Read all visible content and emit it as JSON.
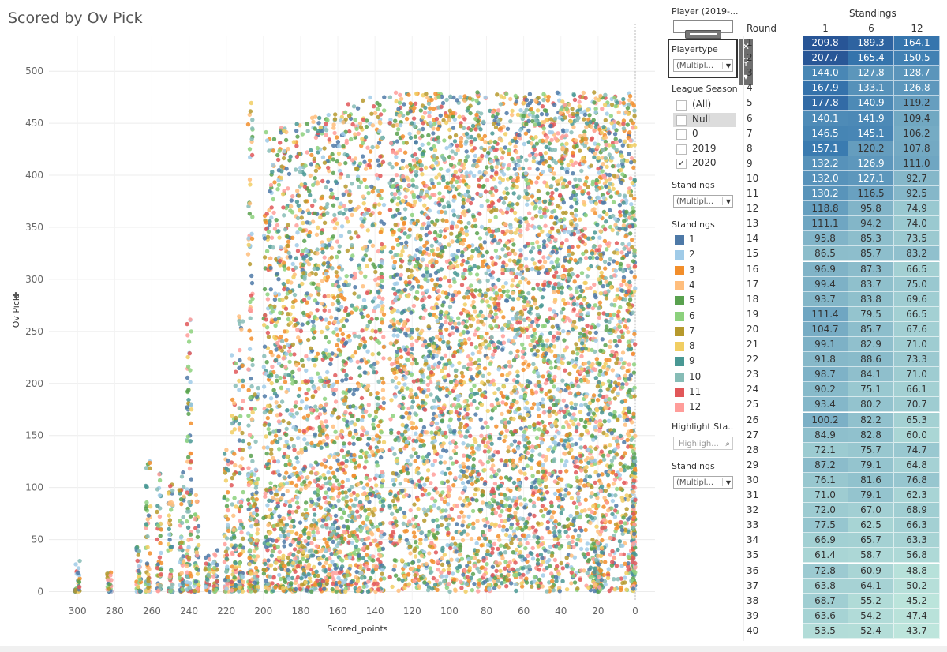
{
  "title": "Scored by Ov Pick",
  "chart_data": {
    "type": "scatter",
    "title": "Scored by Ov Pick",
    "xlabel": "Scored_points",
    "ylabel": "Ov Pick",
    "x_reversed": true,
    "xlim": [
      320,
      0
    ],
    "ylim": [
      -10,
      530
    ],
    "x_ticks": [
      300,
      280,
      260,
      240,
      220,
      200,
      180,
      160,
      140,
      120,
      100,
      80,
      60,
      40,
      20,
      0
    ],
    "y_ticks": [
      0,
      50,
      100,
      150,
      200,
      250,
      300,
      350,
      400,
      450,
      500
    ],
    "grid": true,
    "color_by": "Standings",
    "series_colors": [
      "#4e79a7",
      "#a0cbe8",
      "#f28e2b",
      "#ffbe7d",
      "#59a14f",
      "#8cd17d",
      "#b6992d",
      "#f1ce63",
      "#499894",
      "#86bcb6",
      "#e15759",
      "#ff9d9a"
    ],
    "approx_density": "very dense for Scored_points 0-135 and Ov Pick 0-480; vertical strips at discrete points values 300-140"
  },
  "filters": {
    "player_label": "Player (2019-...",
    "playertype_label": "Playertype",
    "playertype_value": "(Multipl...",
    "league_season_label": "League Season",
    "league_season_options": [
      {
        "label": "(All)",
        "checked": false
      },
      {
        "label": "Null",
        "checked": false
      },
      {
        "label": "0",
        "checked": false
      },
      {
        "label": "2019",
        "checked": false
      },
      {
        "label": "2020",
        "checked": true
      }
    ],
    "standings_label": "Standings",
    "standings_value": "(Multipl...",
    "standings_legend_label": "Standings",
    "legend": [
      {
        "label": "1",
        "color": "#4e79a7"
      },
      {
        "label": "2",
        "color": "#a0cbe8"
      },
      {
        "label": "3",
        "color": "#f28e2b"
      },
      {
        "label": "4",
        "color": "#ffbe7d"
      },
      {
        "label": "5",
        "color": "#59a14f"
      },
      {
        "label": "6",
        "color": "#8cd17d"
      },
      {
        "label": "7",
        "color": "#b6992d"
      },
      {
        "label": "8",
        "color": "#f1ce63"
      },
      {
        "label": "9",
        "color": "#499894"
      },
      {
        "label": "10",
        "color": "#86bcb6"
      },
      {
        "label": "11",
        "color": "#e15759"
      },
      {
        "label": "12",
        "color": "#ff9d9a"
      }
    ],
    "highlight_label": "Highlight Sta..",
    "highlight_placeholder": "Highligh...",
    "standings2_label": "Standings",
    "standings2_value": "(Multipl..."
  },
  "toolbar": {
    "close_glyph": "✕",
    "pin_glyph": "⚲",
    "menu_glyph": "▾"
  },
  "table": {
    "header": "Standings",
    "row_header": "Round",
    "columns": [
      "1",
      "6",
      "12"
    ],
    "rows": [
      {
        "round": "1",
        "values": [
          209.8,
          189.3,
          164.1
        ]
      },
      {
        "round": "2",
        "values": [
          207.7,
          165.4,
          150.5
        ]
      },
      {
        "round": "3",
        "values": [
          144.0,
          127.8,
          128.7
        ]
      },
      {
        "round": "4",
        "values": [
          167.9,
          133.1,
          126.8
        ]
      },
      {
        "round": "5",
        "values": [
          177.8,
          140.9,
          119.2
        ]
      },
      {
        "round": "6",
        "values": [
          140.1,
          141.9,
          109.4
        ]
      },
      {
        "round": "7",
        "values": [
          146.5,
          145.1,
          106.2
        ]
      },
      {
        "round": "8",
        "values": [
          157.1,
          120.2,
          107.8
        ]
      },
      {
        "round": "9",
        "values": [
          132.2,
          126.9,
          111.0
        ]
      },
      {
        "round": "10",
        "values": [
          132.0,
          127.1,
          92.7
        ]
      },
      {
        "round": "11",
        "values": [
          130.2,
          116.5,
          92.5
        ]
      },
      {
        "round": "12",
        "values": [
          118.8,
          95.8,
          74.9
        ]
      },
      {
        "round": "13",
        "values": [
          111.1,
          94.2,
          74.0
        ]
      },
      {
        "round": "14",
        "values": [
          95.8,
          85.3,
          73.5
        ]
      },
      {
        "round": "15",
        "values": [
          86.5,
          85.7,
          83.2
        ]
      },
      {
        "round": "16",
        "values": [
          96.9,
          87.3,
          66.5
        ]
      },
      {
        "round": "17",
        "values": [
          99.4,
          83.7,
          75.0
        ]
      },
      {
        "round": "18",
        "values": [
          93.7,
          83.8,
          69.6
        ]
      },
      {
        "round": "19",
        "values": [
          111.4,
          79.5,
          66.5
        ]
      },
      {
        "round": "20",
        "values": [
          104.7,
          85.7,
          67.6
        ]
      },
      {
        "round": "21",
        "values": [
          99.1,
          82.9,
          71.0
        ]
      },
      {
        "round": "22",
        "values": [
          91.8,
          88.6,
          73.3
        ]
      },
      {
        "round": "23",
        "values": [
          98.7,
          84.1,
          71.0
        ]
      },
      {
        "round": "24",
        "values": [
          90.2,
          75.1,
          66.1
        ]
      },
      {
        "round": "25",
        "values": [
          93.4,
          80.2,
          70.7
        ]
      },
      {
        "round": "26",
        "values": [
          100.2,
          82.2,
          65.3
        ]
      },
      {
        "round": "27",
        "values": [
          84.9,
          82.8,
          60.0
        ]
      },
      {
        "round": "28",
        "values": [
          72.1,
          75.7,
          74.7
        ]
      },
      {
        "round": "29",
        "values": [
          87.2,
          79.1,
          64.8
        ]
      },
      {
        "round": "30",
        "values": [
          76.1,
          81.6,
          76.8
        ]
      },
      {
        "round": "31",
        "values": [
          71.0,
          79.1,
          62.3
        ]
      },
      {
        "round": "32",
        "values": [
          72.0,
          67.0,
          68.9
        ]
      },
      {
        "round": "33",
        "values": [
          77.5,
          62.5,
          66.3
        ]
      },
      {
        "round": "34",
        "values": [
          66.9,
          65.7,
          63.3
        ]
      },
      {
        "round": "35",
        "values": [
          61.4,
          58.7,
          56.8
        ]
      },
      {
        "round": "36",
        "values": [
          72.8,
          60.9,
          48.8
        ]
      },
      {
        "round": "37",
        "values": [
          63.8,
          64.1,
          50.2
        ]
      },
      {
        "round": "38",
        "values": [
          68.7,
          55.2,
          45.2
        ]
      },
      {
        "round": "39",
        "values": [
          63.6,
          54.2,
          47.4
        ]
      },
      {
        "round": "40",
        "values": [
          53.5,
          52.4,
          43.7
        ]
      }
    ]
  }
}
